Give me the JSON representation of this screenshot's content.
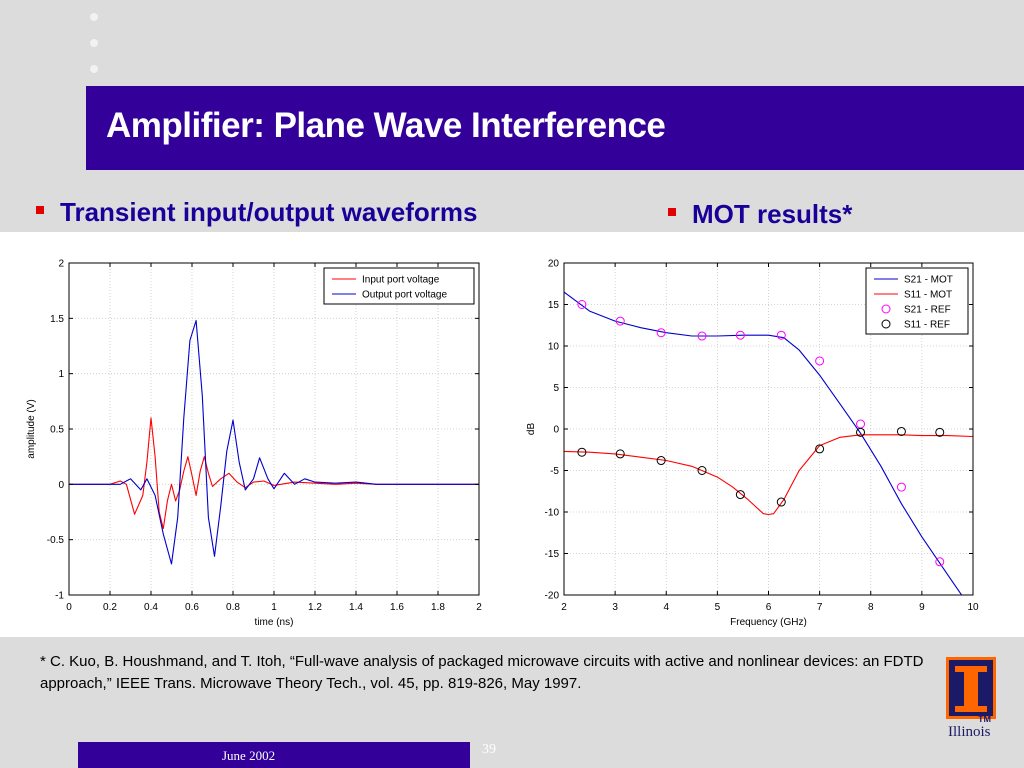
{
  "slide": {
    "title": "Amplifier: Plane Wave Interference",
    "bullet_left": "Transient input/output waveforms",
    "bullet_right": "MOT results*",
    "citation": "* C. Kuo, B. Houshmand, and T. Itoh, “Full-wave analysis of packaged microwave circuits with active and nonlinear devices: an FDTD approach,” IEEE Trans. Microwave Theory Tech., vol. 45, pp. 819-826, May 1997.",
    "date": "June 2002",
    "page_number": "39",
    "logo_text": "Illinois",
    "logo_tm": "TM",
    "colors": {
      "title_bar": "#330099",
      "bullet_text": "#1a0099",
      "bullet_square": "#e00000",
      "logo_orange": "#ff6600"
    }
  },
  "chart_data": [
    {
      "type": "line",
      "xlabel": "time (ns)",
      "ylabel": "amplitude (V)",
      "xlim": [
        0,
        2
      ],
      "ylim": [
        -1,
        2
      ],
      "xticks": [
        0,
        0.2,
        0.4,
        0.6,
        0.8,
        1,
        1.2,
        1.4,
        1.6,
        1.8,
        2
      ],
      "yticks": [
        -1,
        -0.5,
        0,
        0.5,
        1,
        1.5,
        2
      ],
      "grid": true,
      "legend_position": "top-right",
      "series": [
        {
          "name": "Input port voltage",
          "color": "#ff0000",
          "x": [
            0,
            0.2,
            0.25,
            0.28,
            0.32,
            0.36,
            0.38,
            0.4,
            0.42,
            0.44,
            0.46,
            0.48,
            0.5,
            0.52,
            0.54,
            0.56,
            0.58,
            0.6,
            0.62,
            0.64,
            0.66,
            0.68,
            0.7,
            0.74,
            0.78,
            0.82,
            0.86,
            0.9,
            0.95,
            1.0,
            1.1,
            1.2,
            1.3,
            1.4,
            1.5,
            1.6,
            2.0
          ],
          "y": [
            0,
            0,
            0.03,
            0.0,
            -0.27,
            -0.1,
            0.2,
            0.6,
            0.25,
            -0.25,
            -0.4,
            -0.15,
            0.0,
            -0.15,
            -0.05,
            0.12,
            0.25,
            0.08,
            -0.1,
            0.12,
            0.25,
            0.1,
            -0.02,
            0.05,
            0.1,
            0.02,
            -0.03,
            0.02,
            0.03,
            -0.01,
            0.02,
            0.01,
            0.0,
            0.01,
            0.0,
            0.0,
            0.0
          ]
        },
        {
          "name": "Output port voltage",
          "color": "#0000cc",
          "x": [
            0,
            0.25,
            0.3,
            0.35,
            0.38,
            0.42,
            0.46,
            0.5,
            0.53,
            0.56,
            0.59,
            0.62,
            0.65,
            0.68,
            0.71,
            0.74,
            0.77,
            0.8,
            0.83,
            0.86,
            0.9,
            0.93,
            0.97,
            1.0,
            1.05,
            1.1,
            1.15,
            1.2,
            1.3,
            1.4,
            1.5,
            2.0
          ],
          "y": [
            0,
            0,
            0.05,
            -0.05,
            0.05,
            -0.1,
            -0.45,
            -0.72,
            -0.3,
            0.6,
            1.3,
            1.48,
            0.8,
            -0.3,
            -0.65,
            -0.2,
            0.3,
            0.58,
            0.2,
            -0.05,
            0.05,
            0.24,
            0.05,
            -0.04,
            0.1,
            0.0,
            0.05,
            0.02,
            0.01,
            0.02,
            0.0,
            0.0
          ]
        }
      ]
    },
    {
      "type": "line",
      "xlabel": "Frequency (GHz)",
      "ylabel": "dB",
      "xlim": [
        2,
        10
      ],
      "ylim": [
        -20,
        20
      ],
      "xticks": [
        2,
        3,
        4,
        5,
        6,
        7,
        8,
        9,
        10
      ],
      "yticks": [
        -20,
        -15,
        -10,
        -5,
        0,
        5,
        10,
        15,
        20
      ],
      "grid": true,
      "legend_position": "top-right",
      "series": [
        {
          "name": "S21 - MOT",
          "style": "line",
          "color": "#0000cc",
          "x": [
            2,
            2.5,
            3,
            3.5,
            4,
            4.5,
            5,
            5.5,
            6,
            6.3,
            6.6,
            7,
            7.4,
            7.8,
            8.2,
            8.6,
            9,
            9.5,
            10
          ],
          "y": [
            16.5,
            14.2,
            13,
            12.2,
            11.6,
            11.2,
            11.2,
            11.3,
            11.3,
            11,
            9.5,
            6.5,
            3,
            -0.5,
            -4.5,
            -9,
            -13,
            -17.5,
            -22
          ]
        },
        {
          "name": "S11 - MOT",
          "style": "line",
          "color": "#ff0000",
          "x": [
            2,
            2.5,
            3,
            3.5,
            4,
            4.5,
            5,
            5.3,
            5.6,
            5.9,
            6.0,
            6.1,
            6.3,
            6.6,
            7,
            7.4,
            7.8,
            8.2,
            8.6,
            9,
            9.5,
            10
          ],
          "y": [
            -2.7,
            -2.8,
            -3,
            -3.4,
            -3.8,
            -4.5,
            -5.8,
            -7,
            -8.5,
            -10.2,
            -10.3,
            -10.2,
            -8.5,
            -5,
            -2,
            -1,
            -0.7,
            -0.7,
            -0.7,
            -0.8,
            -0.8,
            -0.9
          ]
        },
        {
          "name": "S21 - REF",
          "style": "marker",
          "color": "#ff00ff",
          "x": [
            2.35,
            3.1,
            3.9,
            4.7,
            5.45,
            6.25,
            7.0,
            7.8,
            8.6,
            9.35
          ],
          "y": [
            15,
            13,
            11.6,
            11.2,
            11.3,
            11.3,
            8.2,
            0.6,
            -7,
            -16
          ]
        },
        {
          "name": "S11 - REF",
          "style": "marker",
          "color": "#000000",
          "x": [
            2.35,
            3.1,
            3.9,
            4.7,
            5.45,
            6.25,
            7.0,
            7.8,
            8.6,
            9.35
          ],
          "y": [
            -2.8,
            -3,
            -3.8,
            -5,
            -7.9,
            -8.8,
            -2.4,
            -0.4,
            -0.3,
            -0.4
          ]
        }
      ]
    }
  ]
}
